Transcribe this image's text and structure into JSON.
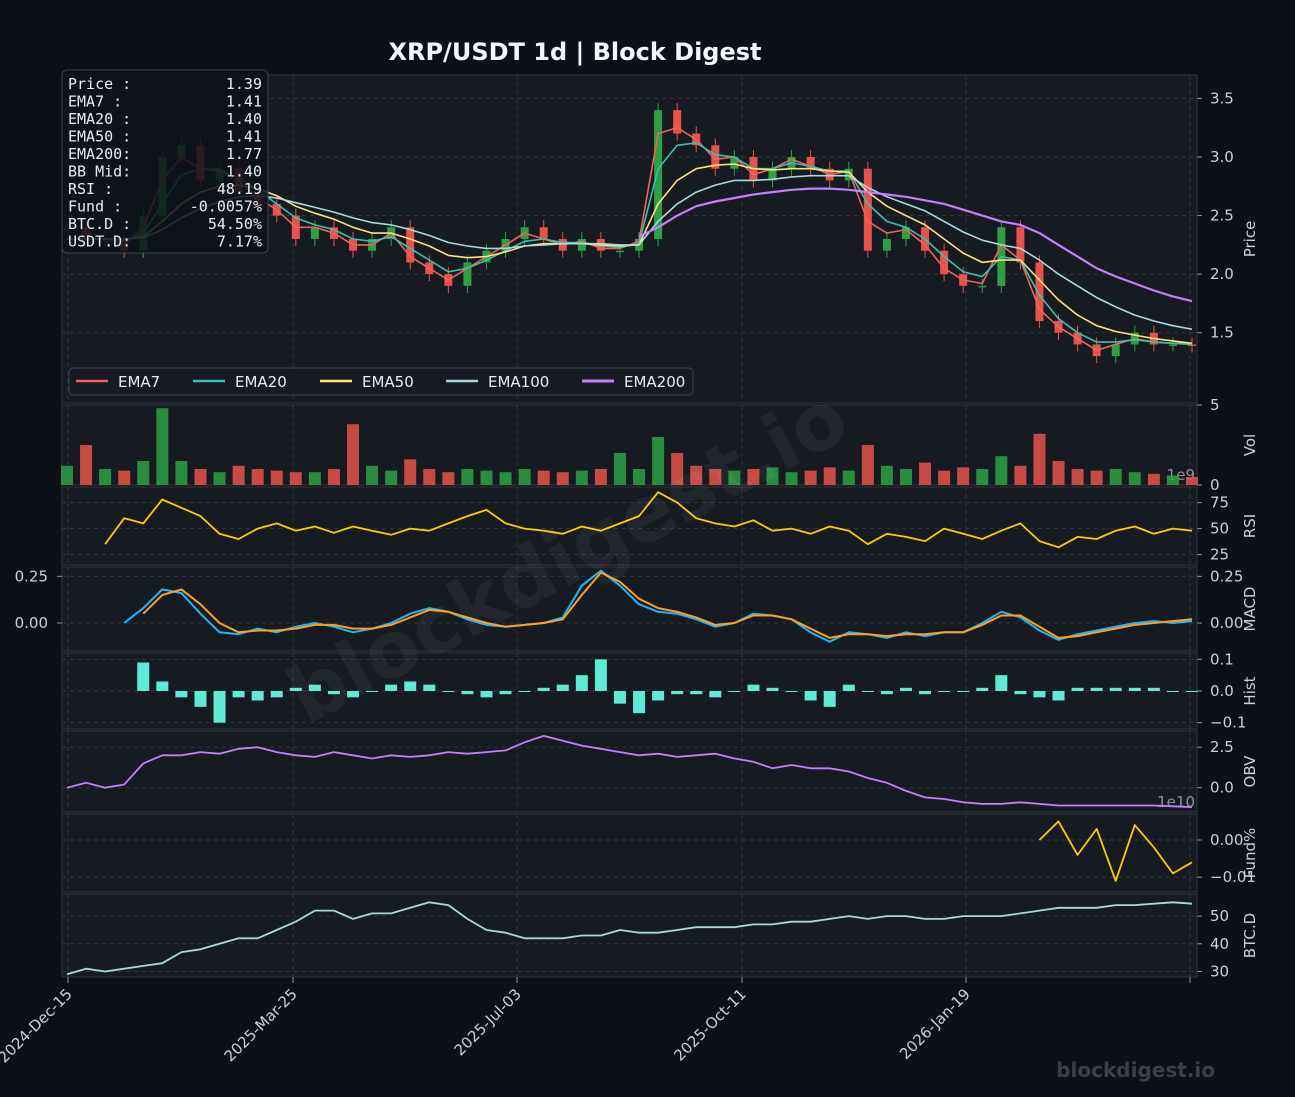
{
  "title": "XRP/USDT  1d  |  Block Digest",
  "watermark": "blockdigest.io",
  "footer_brand": "blockdigest.io",
  "colors": {
    "background": "#0d1117",
    "panel": "#161b22",
    "grid": "#30363d",
    "candle_up": "#2ea043",
    "candle_down": "#e5534b",
    "ema7": "#f0625a",
    "ema20": "#3bbfb1",
    "ema50": "#ffe07a",
    "ema100": "#a8dadc",
    "ema200": "#c77dff",
    "rsi": "#ffcc00",
    "macd": "#1fb6ff",
    "signal": "#ff9f1c",
    "hist": "#5eead4",
    "obv": "#c77dff",
    "funding": "#ffcc00",
    "btcd": "#a8dadc"
  },
  "info_box": {
    "rows": [
      {
        "label": "Price :",
        "value": "1.39"
      },
      {
        "label": "EMA7  :",
        "value": "1.41"
      },
      {
        "label": "EMA20 :",
        "value": "1.40"
      },
      {
        "label": "EMA50 :",
        "value": "1.41"
      },
      {
        "label": "EMA200:",
        "value": "1.77"
      },
      {
        "label": "BB Mid:",
        "value": "1.40"
      },
      {
        "label": "RSI   :",
        "value": "48.19"
      },
      {
        "label": "Fund  :",
        "value": "-0.0057%"
      },
      {
        "label": "BTC.D :",
        "value": "54.50%"
      },
      {
        "label": "USDT.D:",
        "value": "7.17%"
      }
    ]
  },
  "legend": [
    "EMA7",
    "EMA20",
    "EMA50",
    "EMA100",
    "EMA200"
  ],
  "chart_data": {
    "type": "line",
    "x_ticks": [
      "2024-Dec-15",
      "2025-Mar-25",
      "2025-Jul-03",
      "2025-Oct-11",
      "2026-Jan-19"
    ],
    "x_range": [
      "2024-Dec-15",
      "2026-Apr-29"
    ],
    "panels": [
      {
        "ylabel": "Price",
        "ticks": [
          "1.5",
          "2.0",
          "2.5",
          "3.0",
          "3.5"
        ],
        "ylim": [
          0.9,
          3.7
        ],
        "price_close": [
          2.4,
          2.3,
          2.3,
          2.2,
          2.5,
          3.0,
          3.1,
          2.8,
          2.9,
          2.7,
          2.6,
          2.5,
          2.3,
          2.4,
          2.3,
          2.2,
          2.3,
          2.4,
          2.1,
          2.0,
          1.9,
          2.1,
          2.2,
          2.3,
          2.4,
          2.3,
          2.2,
          2.3,
          2.2,
          2.2,
          2.3,
          3.4,
          3.2,
          3.1,
          2.9,
          3.0,
          2.8,
          2.9,
          3.0,
          2.9,
          2.8,
          2.9,
          2.2,
          2.3,
          2.4,
          2.2,
          2.0,
          1.9,
          1.9,
          2.4,
          2.1,
          1.6,
          1.5,
          1.4,
          1.3,
          1.4,
          1.5,
          1.4,
          1.4,
          1.39
        ],
        "series": [
          {
            "name": "EMA7",
            "values": [
              2.3,
              2.3,
              2.3,
              2.25,
              2.4,
              2.8,
              3.0,
              2.9,
              2.9,
              2.8,
              2.65,
              2.55,
              2.4,
              2.4,
              2.35,
              2.25,
              2.25,
              2.35,
              2.15,
              2.05,
              1.95,
              2.05,
              2.15,
              2.25,
              2.35,
              2.3,
              2.25,
              2.28,
              2.22,
              2.22,
              2.28,
              3.2,
              3.25,
              3.15,
              2.98,
              3.0,
              2.85,
              2.9,
              2.98,
              2.92,
              2.85,
              2.88,
              2.45,
              2.35,
              2.38,
              2.25,
              2.05,
              1.95,
              1.92,
              2.25,
              2.12,
              1.7,
              1.55,
              1.45,
              1.35,
              1.4,
              1.45,
              1.42,
              1.41,
              1.41
            ]
          },
          {
            "name": "EMA20",
            "values": [
              2.3,
              2.3,
              2.3,
              2.28,
              2.35,
              2.6,
              2.85,
              2.9,
              2.88,
              2.82,
              2.72,
              2.6,
              2.48,
              2.42,
              2.38,
              2.3,
              2.28,
              2.32,
              2.22,
              2.12,
              2.02,
              2.05,
              2.12,
              2.2,
              2.28,
              2.3,
              2.27,
              2.27,
              2.24,
              2.23,
              2.26,
              2.9,
              3.1,
              3.12,
              3.02,
              3.0,
              2.9,
              2.9,
              2.95,
              2.92,
              2.88,
              2.88,
              2.6,
              2.45,
              2.4,
              2.3,
              2.15,
              2.02,
              1.98,
              2.15,
              2.12,
              1.82,
              1.62,
              1.5,
              1.42,
              1.42,
              1.44,
              1.42,
              1.41,
              1.4
            ]
          },
          {
            "name": "EMA50",
            "values": [
              2.3,
              2.3,
              2.3,
              2.3,
              2.32,
              2.45,
              2.6,
              2.7,
              2.75,
              2.76,
              2.73,
              2.67,
              2.58,
              2.52,
              2.47,
              2.4,
              2.35,
              2.35,
              2.3,
              2.24,
              2.16,
              2.14,
              2.15,
              2.19,
              2.24,
              2.26,
              2.26,
              2.26,
              2.25,
              2.24,
              2.25,
              2.6,
              2.8,
              2.9,
              2.93,
              2.94,
              2.9,
              2.89,
              2.9,
              2.9,
              2.88,
              2.87,
              2.7,
              2.58,
              2.5,
              2.42,
              2.3,
              2.18,
              2.1,
              2.12,
              2.12,
              1.95,
              1.78,
              1.65,
              1.56,
              1.51,
              1.48,
              1.45,
              1.43,
              1.41
            ]
          },
          {
            "name": "EMA100",
            "values": [
              2.3,
              2.3,
              2.3,
              2.3,
              2.31,
              2.38,
              2.48,
              2.56,
              2.62,
              2.66,
              2.67,
              2.65,
              2.61,
              2.57,
              2.53,
              2.48,
              2.44,
              2.42,
              2.38,
              2.33,
              2.27,
              2.24,
              2.22,
              2.22,
              2.24,
              2.25,
              2.26,
              2.26,
              2.26,
              2.25,
              2.25,
              2.45,
              2.6,
              2.7,
              2.76,
              2.8,
              2.8,
              2.81,
              2.83,
              2.84,
              2.84,
              2.84,
              2.74,
              2.66,
              2.6,
              2.54,
              2.45,
              2.36,
              2.29,
              2.25,
              2.22,
              2.12,
              2.0,
              1.9,
              1.8,
              1.72,
              1.65,
              1.6,
              1.56,
              1.53
            ]
          },
          {
            "name": "EMA200",
            "values": [
              null,
              null,
              null,
              null,
              null,
              null,
              null,
              null,
              null,
              null,
              null,
              null,
              null,
              null,
              null,
              null,
              null,
              null,
              null,
              null,
              null,
              null,
              null,
              null,
              null,
              null,
              null,
              null,
              null,
              null,
              2.32,
              2.4,
              2.5,
              2.58,
              2.62,
              2.65,
              2.68,
              2.7,
              2.72,
              2.73,
              2.73,
              2.72,
              2.7,
              2.68,
              2.66,
              2.63,
              2.6,
              2.55,
              2.5,
              2.45,
              2.42,
              2.35,
              2.25,
              2.15,
              2.05,
              1.98,
              1.92,
              1.86,
              1.81,
              1.77
            ]
          }
        ]
      },
      {
        "ylabel": "Vol",
        "ticks": [
          "0",
          "5"
        ],
        "scale_label": "1e9",
        "ylim": [
          0,
          5
        ],
        "values": [
          1.2,
          2.5,
          1.0,
          0.9,
          1.5,
          4.8,
          1.5,
          1.0,
          0.8,
          1.2,
          1.0,
          0.9,
          0.8,
          0.8,
          1.0,
          3.8,
          1.2,
          0.9,
          1.6,
          1.0,
          0.8,
          1.0,
          0.9,
          0.8,
          1.0,
          0.9,
          0.8,
          0.9,
          1.0,
          2.0,
          1.0,
          3.0,
          2.0,
          1.2,
          1.0,
          0.9,
          1.0,
          1.1,
          0.8,
          0.9,
          1.1,
          0.9,
          2.5,
          1.2,
          1.0,
          1.4,
          0.9,
          1.1,
          1.0,
          1.8,
          1.2,
          3.2,
          1.5,
          1.0,
          0.9,
          1.0,
          0.8,
          0.7,
          0.6,
          0.5
        ]
      },
      {
        "ylabel": "RSI",
        "ticks": [
          "25",
          "50",
          "75"
        ],
        "ylim": [
          15,
          90
        ],
        "values": [
          null,
          null,
          35,
          60,
          55,
          78,
          70,
          62,
          45,
          40,
          50,
          55,
          48,
          52,
          46,
          52,
          48,
          44,
          50,
          48,
          55,
          62,
          68,
          55,
          50,
          48,
          45,
          52,
          48,
          55,
          62,
          85,
          75,
          60,
          55,
          52,
          58,
          48,
          50,
          45,
          52,
          48,
          35,
          45,
          42,
          38,
          50,
          45,
          40,
          48,
          55,
          38,
          32,
          42,
          40,
          48,
          52,
          45,
          50,
          48
        ]
      },
      {
        "ylabel": "MACD",
        "ticks": [
          "0.00",
          "0.25"
        ],
        "ylim": [
          -0.15,
          0.3
        ],
        "series": [
          {
            "name": "MACD",
            "values": [
              null,
              null,
              null,
              0.0,
              0.08,
              0.18,
              0.16,
              0.05,
              -0.05,
              -0.06,
              -0.03,
              -0.05,
              -0.02,
              0.0,
              -0.02,
              -0.05,
              -0.03,
              0.0,
              0.05,
              0.08,
              0.06,
              0.02,
              -0.01,
              -0.02,
              -0.01,
              0.0,
              0.03,
              0.2,
              0.28,
              0.2,
              0.1,
              0.06,
              0.05,
              0.02,
              -0.02,
              0.0,
              0.05,
              0.04,
              0.02,
              -0.05,
              -0.1,
              -0.05,
              -0.06,
              -0.08,
              -0.05,
              -0.07,
              -0.05,
              -0.05,
              0.0,
              0.06,
              0.03,
              -0.04,
              -0.09,
              -0.06,
              -0.04,
              -0.02,
              0.0,
              0.01,
              0.0,
              0.01
            ]
          },
          {
            "name": "Signal",
            "values": [
              null,
              null,
              null,
              null,
              0.05,
              0.15,
              0.18,
              0.1,
              0.0,
              -0.05,
              -0.04,
              -0.04,
              -0.03,
              -0.01,
              -0.01,
              -0.03,
              -0.03,
              -0.01,
              0.03,
              0.07,
              0.06,
              0.03,
              0.0,
              -0.02,
              -0.01,
              0.0,
              0.02,
              0.15,
              0.27,
              0.22,
              0.13,
              0.08,
              0.06,
              0.03,
              -0.01,
              0.0,
              0.04,
              0.04,
              0.02,
              -0.03,
              -0.08,
              -0.06,
              -0.06,
              -0.07,
              -0.06,
              -0.06,
              -0.05,
              -0.05,
              -0.01,
              0.04,
              0.04,
              -0.02,
              -0.08,
              -0.07,
              -0.05,
              -0.03,
              -0.01,
              0.0,
              0.01,
              0.02
            ]
          }
        ]
      },
      {
        "ylabel": "Hist",
        "ticks": [
          "−0.1",
          "0.0",
          "0.1"
        ],
        "ylim": [
          -0.12,
          0.12
        ],
        "values": [
          null,
          null,
          null,
          null,
          0.09,
          0.03,
          -0.02,
          -0.05,
          -0.1,
          -0.02,
          -0.03,
          -0.02,
          0.01,
          0.02,
          -0.01,
          -0.02,
          0.0,
          0.02,
          0.03,
          0.02,
          0.0,
          -0.01,
          -0.02,
          -0.01,
          0.0,
          0.01,
          0.02,
          0.05,
          0.1,
          -0.04,
          -0.07,
          -0.03,
          -0.01,
          -0.01,
          -0.02,
          0.0,
          0.02,
          0.01,
          0.0,
          -0.03,
          -0.05,
          0.02,
          0.0,
          -0.01,
          0.01,
          -0.01,
          0.0,
          0.0,
          0.01,
          0.05,
          -0.01,
          -0.02,
          -0.03,
          0.01,
          0.01,
          0.01,
          0.01,
          0.01,
          0.0,
          0.0
        ]
      },
      {
        "ylabel": "OBV",
        "ticks": [
          "0.0",
          "2.5"
        ],
        "scale_label": "1e10",
        "ylim": [
          -1.5,
          3.5
        ],
        "values": [
          0.0,
          0.3,
          0.0,
          0.2,
          1.5,
          2.0,
          2.0,
          2.2,
          2.1,
          2.4,
          2.5,
          2.2,
          2.0,
          1.9,
          2.2,
          2.0,
          1.8,
          2.0,
          1.9,
          2.0,
          2.2,
          2.1,
          2.2,
          2.3,
          2.8,
          3.2,
          2.9,
          2.6,
          2.4,
          2.2,
          2.0,
          2.1,
          1.9,
          2.0,
          2.1,
          1.8,
          1.6,
          1.2,
          1.4,
          1.2,
          1.2,
          1.0,
          0.6,
          0.3,
          -0.2,
          -0.6,
          -0.7,
          -0.9,
          -1.0,
          -1.0,
          -0.9,
          -1.0,
          -1.1,
          -1.1,
          -1.1,
          -1.1,
          -1.1,
          -1.1,
          -1.15,
          -1.2
        ]
      },
      {
        "ylabel": "Fund%",
        "ticks": [
          "−0.01",
          "0.00"
        ],
        "ylim": [
          -0.014,
          0.007
        ],
        "values": [
          null,
          null,
          null,
          null,
          null,
          null,
          null,
          null,
          null,
          null,
          null,
          null,
          null,
          null,
          null,
          null,
          null,
          null,
          null,
          null,
          null,
          null,
          null,
          null,
          null,
          null,
          null,
          null,
          null,
          null,
          null,
          null,
          null,
          null,
          null,
          null,
          null,
          null,
          null,
          null,
          null,
          null,
          null,
          null,
          null,
          null,
          null,
          null,
          null,
          null,
          null,
          0.0,
          0.005,
          -0.004,
          0.003,
          -0.011,
          0.004,
          -0.002,
          -0.009,
          -0.006
        ]
      },
      {
        "ylabel": "BTC.D",
        "ticks": [
          "30",
          "40",
          "50"
        ],
        "ylim": [
          28,
          58
        ],
        "values": [
          29,
          31,
          30,
          31,
          32,
          33,
          37,
          38,
          40,
          42,
          42,
          45,
          48,
          52,
          52,
          49,
          51,
          51,
          53,
          55,
          54,
          49,
          45,
          44,
          42,
          42,
          42,
          43,
          43,
          45,
          44,
          44,
          45,
          46,
          46,
          46,
          47,
          47,
          48,
          48,
          49,
          50,
          49,
          50,
          50,
          49,
          49,
          50,
          50,
          50,
          51,
          52,
          53,
          53,
          53,
          54,
          54,
          54.5,
          55,
          54.5
        ]
      }
    ]
  }
}
